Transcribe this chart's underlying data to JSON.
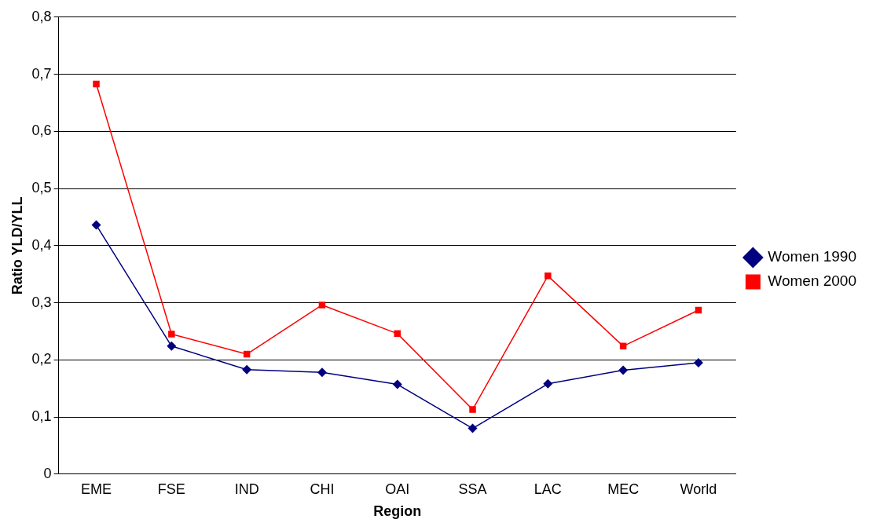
{
  "chart_data": {
    "type": "line",
    "xlabel": "Region",
    "ylabel": "Ratio YLD/YLL",
    "categories": [
      "EME",
      "FSE",
      "IND",
      "CHI",
      "OAI",
      "SSA",
      "LAC",
      "MEC",
      "World"
    ],
    "series": [
      {
        "name": "Women 1990",
        "color": "#000080",
        "marker": "diamond",
        "values": [
          0.436,
          0.224,
          0.183,
          0.178,
          0.157,
          0.08,
          0.158,
          0.182,
          0.195
        ]
      },
      {
        "name": "Women 2000",
        "color": "#ff0000",
        "marker": "square",
        "values": [
          0.683,
          0.245,
          0.21,
          0.296,
          0.246,
          0.113,
          0.347,
          0.224,
          0.287
        ]
      }
    ],
    "ylim": [
      0,
      0.8
    ],
    "yticks": [
      0,
      {
        "value": 0.1,
        "label": "0,1"
      },
      {
        "value": 0.2,
        "label": "0,2"
      },
      {
        "value": 0.3,
        "label": "0,3"
      },
      {
        "value": 0.4,
        "label": "0,4"
      },
      {
        "value": 0.5,
        "label": "0,5"
      },
      {
        "value": 0.6,
        "label": "0,6"
      },
      {
        "value": 0.7,
        "label": "0,7"
      },
      {
        "value": 0.8,
        "label": "0,8"
      }
    ],
    "grid": "y",
    "legend": "right",
    "line_style": "solid"
  }
}
